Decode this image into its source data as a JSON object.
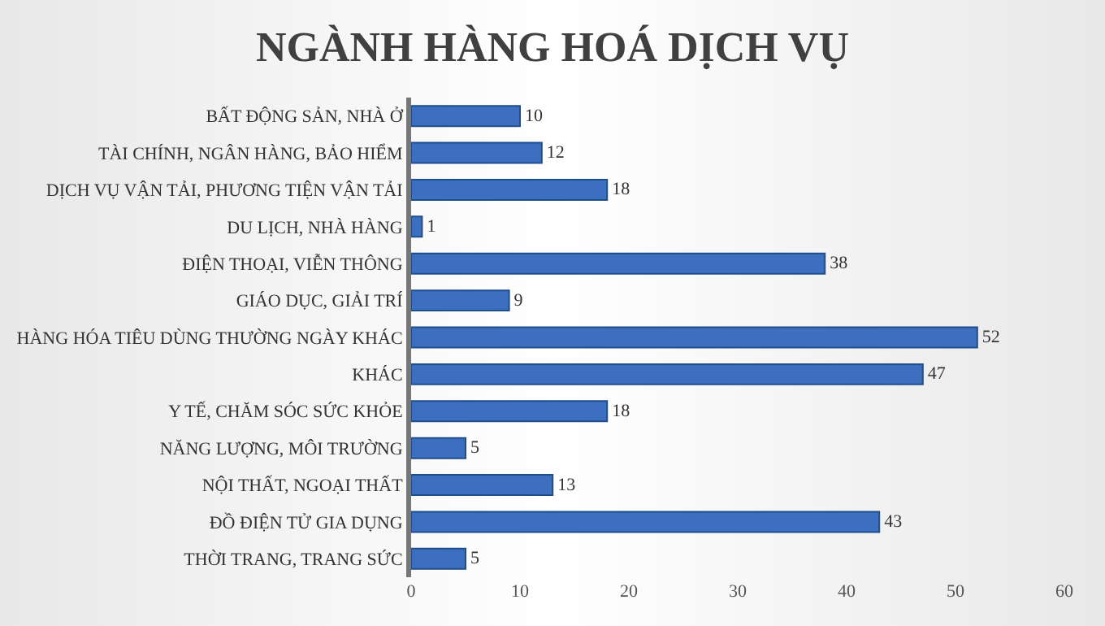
{
  "chart_data": {
    "type": "bar",
    "orientation": "horizontal",
    "title": "NGÀNH HÀNG HOÁ DỊCH VỤ",
    "categories": [
      "BẤT ĐỘNG SẢN, NHÀ Ở",
      "TÀI CHÍNH, NGÂN HÀNG, BẢO HIỂM",
      "DỊCH VỤ VẬN TẢI, PHƯƠNG TIỆN VẬN TẢI",
      "DU LỊCH, NHÀ HÀNG",
      "ĐIỆN THOẠI, VIỄN THÔNG",
      "GIÁO DỤC, GIẢI TRÍ",
      "HÀNG HÓA TIÊU DÙNG THƯỜNG NGÀY KHÁC",
      "KHÁC",
      "Y TẾ, CHĂM SÓC SỨC KHỎE",
      "NĂNG LƯỢNG, MÔI TRƯỜNG",
      "NỘI THẤT, NGOẠI THẤT",
      "ĐỒ ĐIỆN TỬ GIA DỤNG",
      "THỜI TRANG, TRANG SỨC"
    ],
    "values": [
      10,
      12,
      18,
      1,
      38,
      9,
      52,
      47,
      18,
      5,
      13,
      43,
      5
    ],
    "color": "#3c6fbf",
    "xlim": [
      0,
      60
    ],
    "xticks": [
      0,
      10,
      20,
      30,
      40,
      50,
      60
    ],
    "data_labels": true,
    "grid": false,
    "legend": false
  }
}
